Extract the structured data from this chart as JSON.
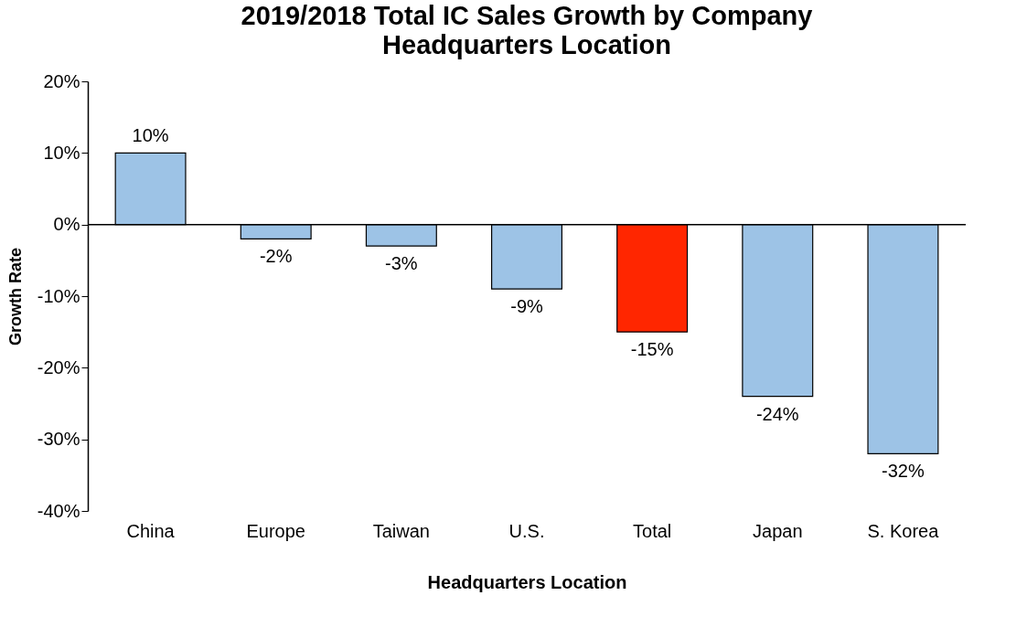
{
  "chart_data": {
    "type": "bar",
    "title": "2019/2018 Total IC Sales Growth by Company Headquarters Location",
    "xlabel": "Headquarters Location",
    "ylabel": "Growth Rate",
    "categories": [
      "China",
      "Europe",
      "Taiwan",
      "U.S.",
      "Total",
      "Japan",
      "S. Korea"
    ],
    "values": [
      10,
      -2,
      -3,
      -9,
      -15,
      -24,
      -32
    ],
    "colors": [
      "#9dc3e6",
      "#9dc3e6",
      "#9dc3e6",
      "#9dc3e6",
      "#ff2600",
      "#9dc3e6",
      "#9dc3e6"
    ],
    "value_labels": [
      "10%",
      "-2%",
      "-3%",
      "-9%",
      "-15%",
      "-24%",
      "-32%"
    ],
    "ylim": [
      -40,
      20
    ],
    "yticks": [
      {
        "value": -40,
        "label": "-40%"
      },
      {
        "value": -30,
        "label": "-30%"
      },
      {
        "value": -20,
        "label": "-20%"
      },
      {
        "value": -10,
        "label": "-10%"
      },
      {
        "value": 0,
        "label": "0%"
      },
      {
        "value": 10,
        "label": "10%"
      },
      {
        "value": 20,
        "label": "20%"
      }
    ],
    "ref_lines": [
      {
        "axis": "y",
        "value": 0
      }
    ],
    "grid": false
  }
}
